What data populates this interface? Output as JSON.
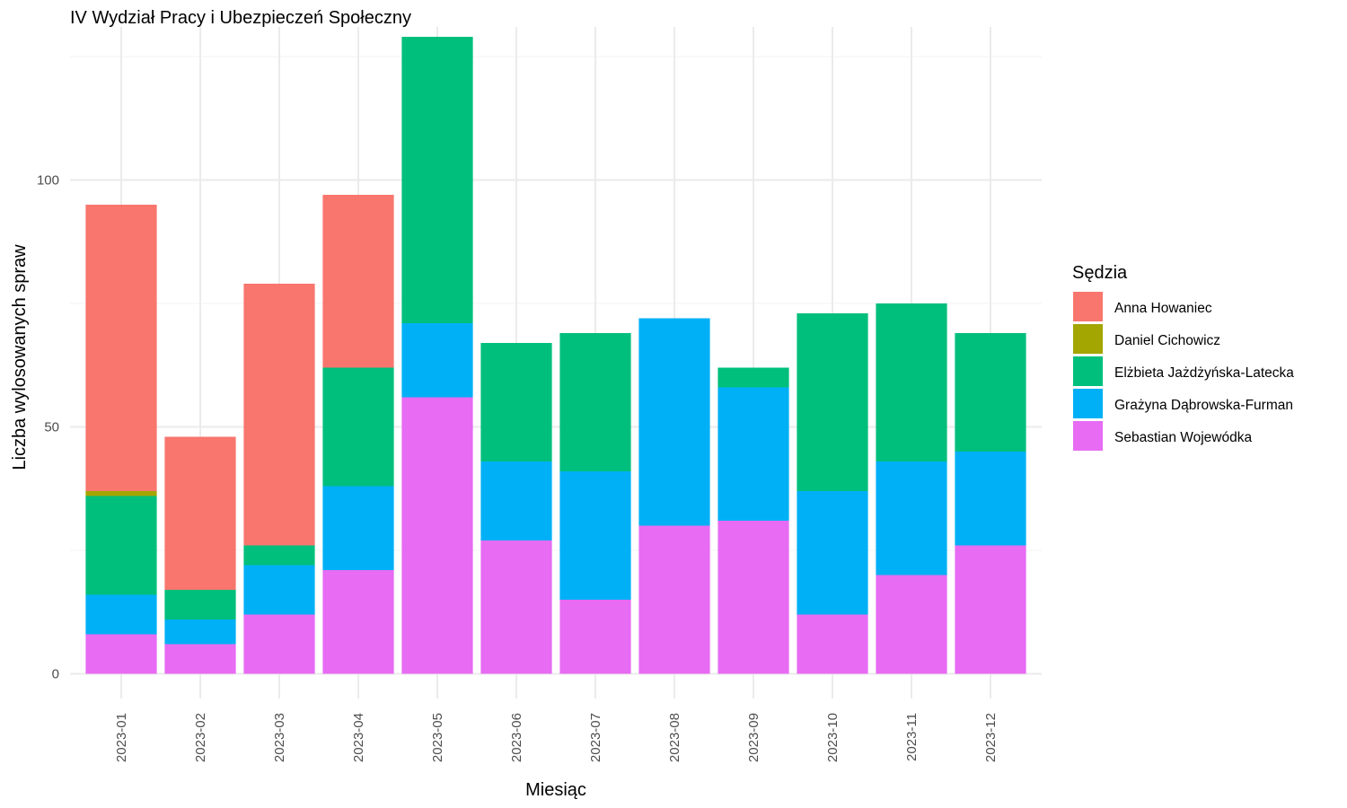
{
  "chart_data": {
    "type": "bar",
    "stacked": true,
    "title": "IV Wydział Pracy i Ubezpieczeń Społeczny",
    "xlabel": "Miesiąc",
    "ylabel": "Liczba wylosowanych spraw",
    "ylim": [
      -5,
      131
    ],
    "yticks": [
      0,
      50,
      100
    ],
    "grid": true,
    "legend": {
      "title": "Sędzia",
      "position": "right"
    },
    "categories": [
      "2023-01",
      "2023-02",
      "2023-03",
      "2023-04",
      "2023-05",
      "2023-06",
      "2023-07",
      "2023-08",
      "2023-09",
      "2023-10",
      "2023-11",
      "2023-12"
    ],
    "series": [
      {
        "name": "Sebastian Wojewódka",
        "color": "#E76BF3",
        "values": [
          8,
          6,
          12,
          21,
          56,
          27,
          15,
          30,
          31,
          12,
          20,
          26
        ]
      },
      {
        "name": "Grażyna Dąbrowska-Furman",
        "color": "#00B0F6",
        "values": [
          8,
          5,
          10,
          17,
          15,
          16,
          26,
          42,
          27,
          25,
          23,
          19
        ]
      },
      {
        "name": "Elżbieta Jażdżyńska-Latecka",
        "color": "#00BF7D",
        "values": [
          20,
          6,
          4,
          24,
          58,
          24,
          28,
          0,
          4,
          36,
          32,
          24
        ]
      },
      {
        "name": "Daniel Cichowicz",
        "color": "#A3A500",
        "values": [
          1,
          0,
          0,
          0,
          0,
          0,
          0,
          0,
          0,
          0,
          0,
          0
        ]
      },
      {
        "name": "Anna Howaniec",
        "color": "#F8766D",
        "values": [
          58,
          31,
          53,
          35,
          0,
          0,
          0,
          0,
          0,
          0,
          0,
          0
        ]
      }
    ],
    "legend_order": [
      "Anna Howaniec",
      "Daniel Cichowicz",
      "Elżbieta Jażdżyńska-Latecka",
      "Grażyna Dąbrowska-Furman",
      "Sebastian Wojewódka"
    ]
  }
}
